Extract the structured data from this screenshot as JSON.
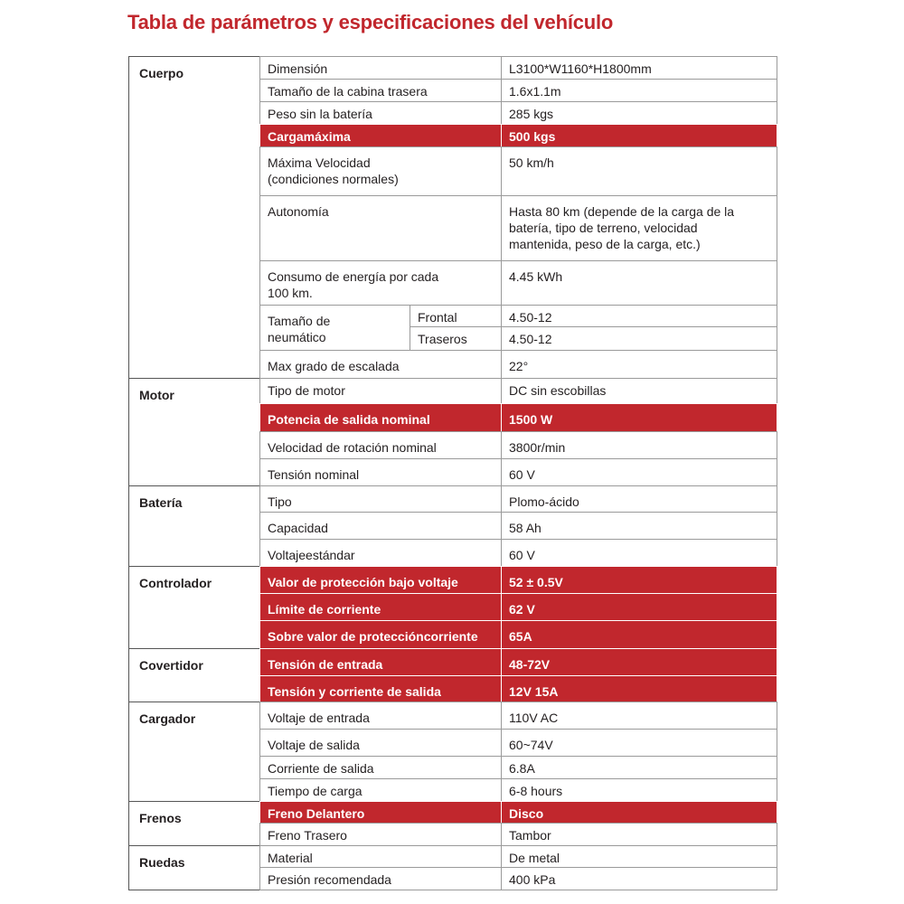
{
  "title": "Tabla de parámetros y especificaciones del vehículo",
  "colors": {
    "accent": "#c1272d",
    "border": "#9a9a9a"
  },
  "sections": [
    {
      "name": "Cuerpo",
      "rows": [
        {
          "param": "Dimensión",
          "value": "L3100*W1160*H1800mm"
        },
        {
          "param": "Tamaño de la cabina trasera",
          "value": "1.6x1.1m"
        },
        {
          "param": "Peso sin la batería",
          "value": "285 kgs"
        },
        {
          "param": "Cargamáxima",
          "value": "500 kgs",
          "highlight": true
        },
        {
          "param": "Máxima Velocidad\n(condiciones normales)",
          "value": "50 km/h"
        },
        {
          "param": "Autonomía",
          "value": "Hasta 80 km (depende de la carga de la\nbatería, tipo de terreno, velocidad\nmantenida, peso de la carga, etc.)"
        },
        {
          "param": "Consumo de energía por cada\n100 km.",
          "value": "4.45 kWh"
        },
        {
          "param": "Tamaño de\nneumático",
          "sub": [
            {
              "param": "Frontal",
              "value": "4.50-12"
            },
            {
              "param": "Traseros",
              "value": "4.50-12"
            }
          ]
        },
        {
          "param": "Max grado de escalada",
          "value": "22°"
        }
      ]
    },
    {
      "name": "Motor",
      "rows": [
        {
          "param": "Tipo de motor",
          "value": "DC sin escobillas"
        },
        {
          "param": "Potencia de salida nominal",
          "value": "1500 W",
          "highlight": true
        },
        {
          "param": "Velocidad de rotación nominal",
          "value": "3800r/min"
        },
        {
          "param": "Tensión nominal",
          "value": "60 V"
        }
      ]
    },
    {
      "name": "Batería",
      "rows": [
        {
          "param": "Tipo",
          "value": "Plomo-ácido"
        },
        {
          "param": "Capacidad",
          "value": "58 Ah"
        },
        {
          "param": "Voltajeestándar",
          "value": "60 V"
        }
      ]
    },
    {
      "name": "Controlador",
      "rows": [
        {
          "param": "Valor de protección bajo voltaje",
          "value": "52 ± 0.5V",
          "highlight": true
        },
        {
          "param": "Límite de corriente",
          "value": "62 V",
          "highlight": true
        },
        {
          "param": "Sobre valor de proteccióncorriente",
          "value": "65A",
          "highlight": true
        }
      ]
    },
    {
      "name": "Covertidor",
      "rows": [
        {
          "param": "Tensión de entrada",
          "value": "48-72V",
          "highlight": true
        },
        {
          "param": "Tensión y corriente de salida",
          "value": "12V 15A",
          "highlight": true
        }
      ]
    },
    {
      "name": "Cargador",
      "rows": [
        {
          "param": "Voltaje de entrada",
          "value": "110V AC"
        },
        {
          "param": "Voltaje de salida",
          "value": "60~74V"
        },
        {
          "param": "Corriente de salida",
          "value": "6.8A"
        },
        {
          "param": "Tiempo de carga",
          "value": "6-8 hours"
        }
      ]
    },
    {
      "name": "Frenos",
      "rows": [
        {
          "param": "Freno Delantero",
          "value": "Disco",
          "highlight": true
        },
        {
          "param": "Freno Trasero",
          "value": "Tambor"
        }
      ]
    },
    {
      "name": "Ruedas",
      "rows": [
        {
          "param": "Material",
          "value": "De metal"
        },
        {
          "param": "Presión recomendada",
          "value": "400 kPa"
        }
      ]
    }
  ]
}
